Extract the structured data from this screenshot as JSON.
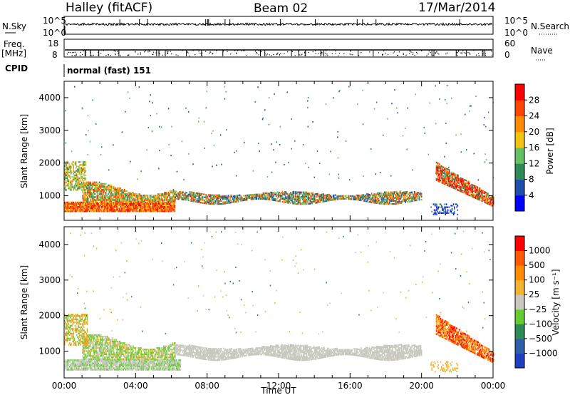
{
  "header": {
    "station": "Halley (fitACF)",
    "beam": "Beam 02",
    "date": "17/Mar/2014"
  },
  "strips": {
    "nsky_label": "N.Sky",
    "nsky_ticks": [
      "10^5",
      "10^0"
    ],
    "nsearch_label": "N.Search",
    "freq_label": "Freq.",
    "freq_unit": "[MHz]",
    "freq_ticks": [
      "18",
      "8"
    ],
    "nave_label": "Nave",
    "nave_ticks": [
      "60",
      "0"
    ],
    "cpid_label": "CPID",
    "cpid_value": "normal (fast) 151"
  },
  "colors": {
    "power_scale": [
      "#0000ff",
      "#1f4fa8",
      "#2e8b57",
      "#66c166",
      "#f1c40f",
      "#ff8c00",
      "#ff4500",
      "#ff0000"
    ],
    "velocity_scale": [
      "#1f3fbf",
      "#2f5fa8",
      "#2e8b57",
      "#66cc33",
      "#c8c8c0",
      "#f2b233",
      "#ff8c00",
      "#ff5a00",
      "#ff0000"
    ]
  },
  "chart_data": [
    {
      "type": "heatmap",
      "panel": "power",
      "ylabel": "Slant Range [km]",
      "ylim": [
        250,
        4500
      ],
      "yticks": [
        "4000",
        "3000",
        "2000",
        "1000"
      ],
      "xticks": [
        "00:00",
        "04:00",
        "08:00",
        "12:00",
        "16:00",
        "20:00",
        "00:00"
      ],
      "colorbar_label": "Power [dB]",
      "colorbar_ticks": [
        "28",
        "24",
        "20",
        "16",
        "12",
        "8",
        "4"
      ]
    },
    {
      "type": "heatmap",
      "panel": "velocity",
      "ylabel": "Slant Range [km]",
      "ylim": [
        250,
        4500
      ],
      "yticks": [
        "4000",
        "3000",
        "2000",
        "1000"
      ],
      "xticks": [
        "00:00",
        "04:00",
        "08:00",
        "12:00",
        "16:00",
        "20:00",
        "00:00"
      ],
      "xlabel": "Time UT",
      "colorbar_label": "Velocity [m s⁻¹]",
      "colorbar_ticks": [
        "1000",
        "500",
        "100",
        "25",
        "−25",
        "−100",
        "−500",
        "−1000"
      ]
    }
  ]
}
